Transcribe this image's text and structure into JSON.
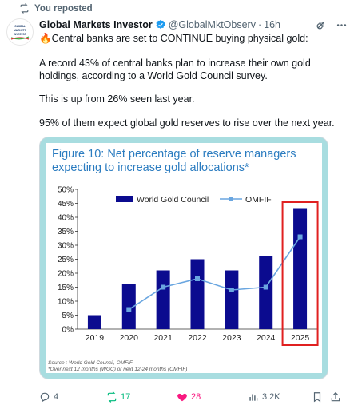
{
  "repost": {
    "label": "You reposted"
  },
  "post": {
    "author_name": "Global Markets Investor",
    "handle": "@GlobalMktObserv",
    "time": "16h",
    "avatar_text": "GLOBAL MARKETS INVESTOR",
    "paragraphs": [
      "Central banks are set to CONTINUE buying physical gold:",
      "A record 43% of central banks plan to increase their own gold holdings, according to a World Gold Council survey.",
      "This is up from 26% seen last year.",
      "95% of them expect global gold reserves to rise over the next year."
    ],
    "emoji_first": "🔥"
  },
  "figure": {
    "title": "Figure 10: Net percentage of reserve managers expecting to increase gold allocations*",
    "source_line1": "Source : World Gold Council, OMFIF",
    "source_line2": "*Over next 12 months (WGC) or next 12-24 months (OMFIF)"
  },
  "chart_data": {
    "type": "bar",
    "categories": [
      "2019",
      "2020",
      "2021",
      "2022",
      "2023",
      "2024",
      "2025"
    ],
    "series": [
      {
        "name": "World Gold Council",
        "type": "bar",
        "values": [
          5,
          16,
          21,
          25,
          21,
          26,
          43
        ],
        "color": "#0b0b8f"
      },
      {
        "name": "OMFIF",
        "type": "line",
        "values": [
          null,
          7,
          15,
          18,
          14,
          15,
          33
        ],
        "color": "#6aa6e0"
      }
    ],
    "ylim": [
      0,
      50
    ],
    "yticks": [
      "0%",
      "5%",
      "10%",
      "15%",
      "20%",
      "25%",
      "30%",
      "35%",
      "40%",
      "45%",
      "50%"
    ],
    "highlight_category": "2025",
    "highlight_color": "#e02020",
    "legend_position": "top",
    "grid": false
  },
  "actions": {
    "replies": "4",
    "reposts": "17",
    "likes": "28",
    "views": "3.2K"
  },
  "colors": {
    "accent_blue": "#1d9bf0",
    "repost_green": "#00ba7c",
    "like_pink": "#f91880",
    "muted": "#536471"
  }
}
